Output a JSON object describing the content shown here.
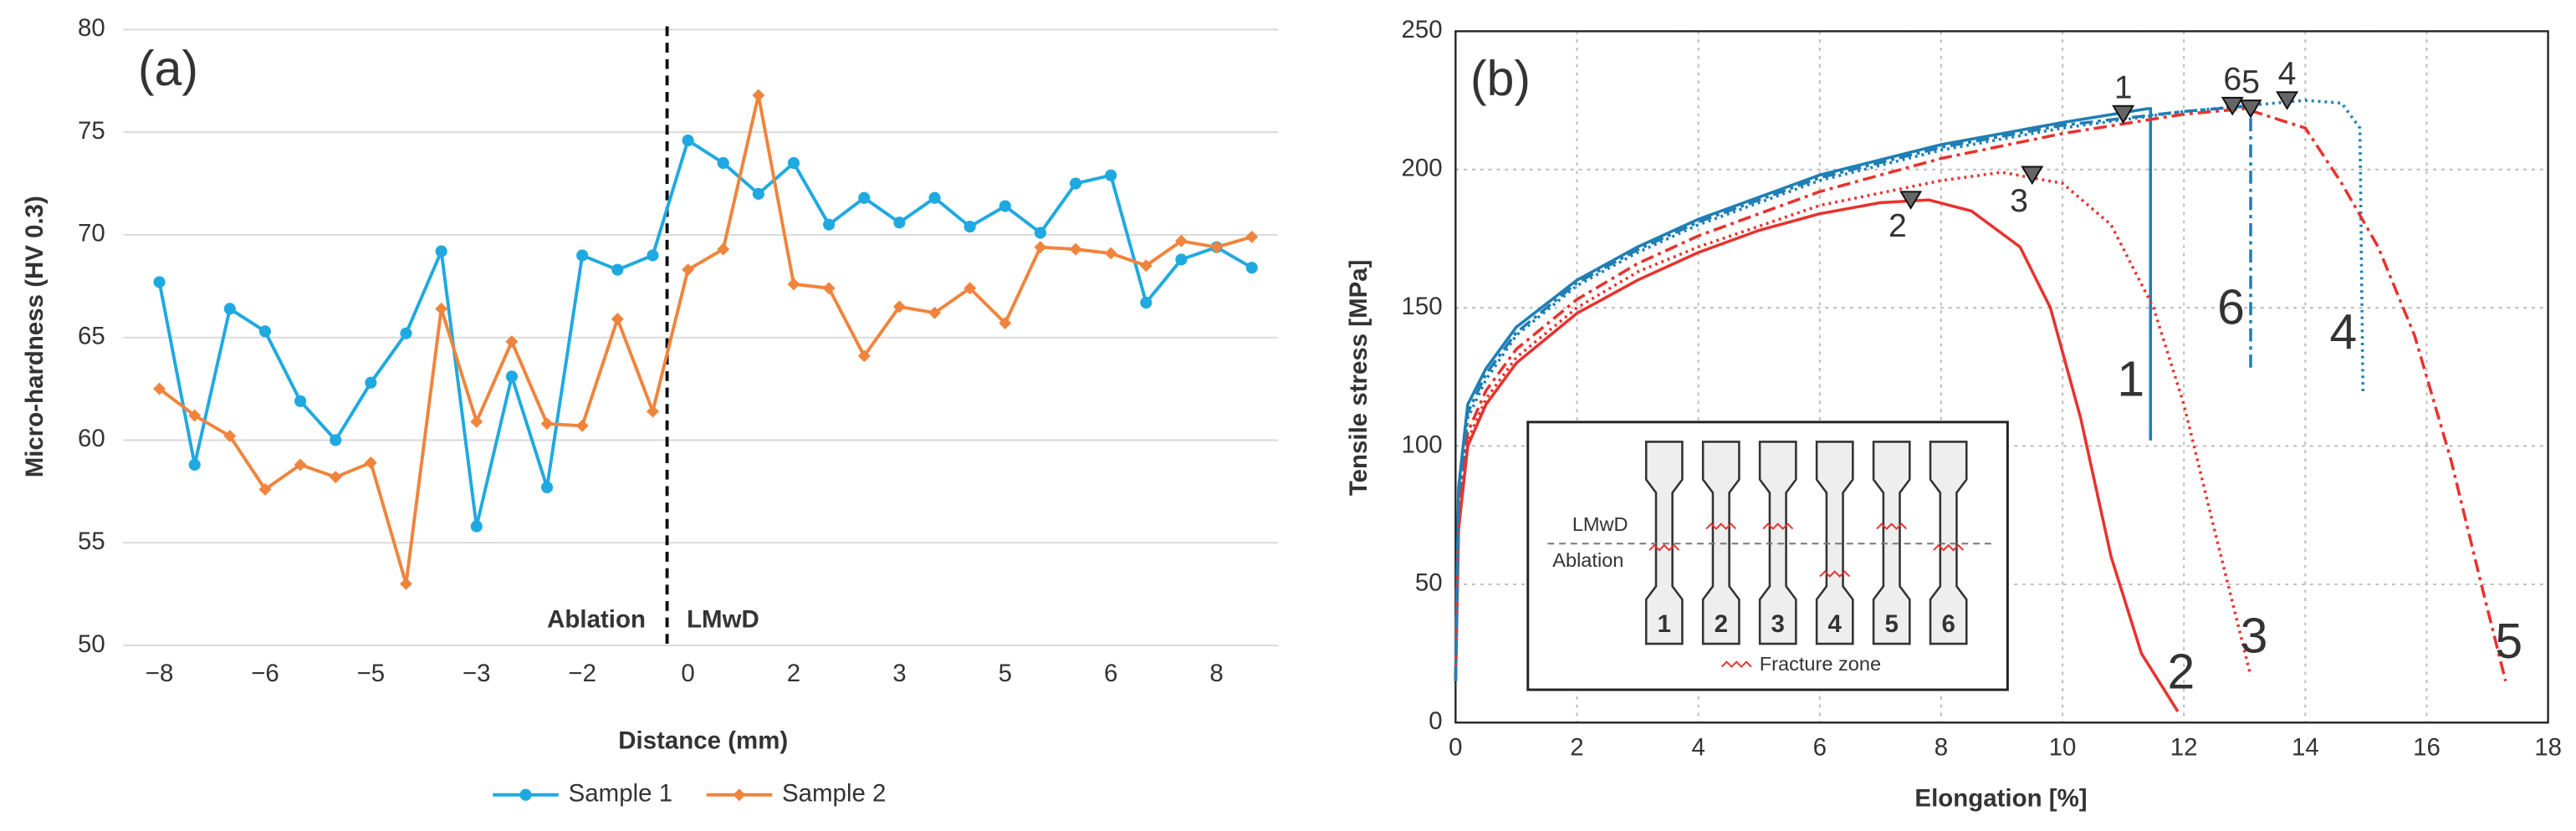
{
  "chart_data": [
    {
      "type": "line",
      "panel": "(a)",
      "ylabel": "Micro-hardness (HV 0.3)",
      "xlabel": "Distance (mm)",
      "annotations": [
        "Ablation",
        "LMwD"
      ],
      "categories": [
        "−8",
        null,
        null,
        "−6",
        null,
        null,
        "−5",
        null,
        null,
        "−3",
        null,
        null,
        "−2",
        null,
        null,
        "0",
        null,
        null,
        "2",
        null,
        null,
        "3",
        null,
        null,
        "5",
        null,
        null,
        "6",
        null,
        null,
        "8",
        null
      ],
      "series": [
        {
          "name": "Sample 1",
          "color": "#1fa9e1",
          "marker": "circle",
          "values": [
            67.7,
            58.8,
            66.4,
            65.3,
            61.9,
            60.0,
            62.8,
            65.2,
            69.2,
            55.8,
            63.1,
            57.7,
            69.0,
            68.3,
            69.0,
            74.6,
            73.5,
            72.0,
            73.5,
            70.5,
            71.8,
            70.6,
            71.8,
            70.4,
            71.4,
            70.1,
            72.5,
            72.9,
            66.7,
            68.8,
            69.4,
            68.4
          ]
        },
        {
          "name": "Sample 2",
          "color": "#f0843c",
          "marker": "diamond",
          "values": [
            62.5,
            61.2,
            60.2,
            57.6,
            58.8,
            58.2,
            58.9,
            53.0,
            66.4,
            60.9,
            64.8,
            60.8,
            60.7,
            65.9,
            61.4,
            68.3,
            69.3,
            76.8,
            67.6,
            67.4,
            64.1,
            66.5,
            66.2,
            67.4,
            65.7,
            69.4,
            69.3,
            69.1,
            68.5,
            69.7,
            69.4,
            69.9
          ]
        }
      ],
      "ylim": [
        50,
        80
      ],
      "yticks": [
        50,
        55,
        60,
        65,
        70,
        75,
        80
      ],
      "grid": true,
      "legend": "bottom"
    },
    {
      "type": "line",
      "panel": "(b)",
      "ylabel": "Tensile stress  [MPa]",
      "xlabel": "Elongation  [%]",
      "xlim": [
        0,
        18
      ],
      "xticks": [
        0,
        2,
        4,
        6,
        8,
        10,
        12,
        14,
        16,
        18
      ],
      "ylim": [
        0,
        250
      ],
      "yticks": [
        0,
        50,
        100,
        150,
        200,
        250
      ],
      "grid": true,
      "series": [
        {
          "name": "1",
          "color": "#1f7fb5",
          "dash": "solid",
          "x": [
            0,
            0.05,
            0.2,
            0.5,
            1,
            2,
            3,
            4,
            6,
            8,
            10,
            11.4,
            11.45,
            11.45
          ],
          "values": [
            15,
            85,
            115,
            128,
            143,
            160,
            172,
            182,
            198,
            209,
            217,
            222,
            222,
            102
          ],
          "fracture": [
            11.0,
            220
          ]
        },
        {
          "name": "2",
          "color": "#e8322e",
          "dash": "solid",
          "x": [
            0,
            0.05,
            0.2,
            0.5,
            1,
            2,
            3,
            4,
            5,
            6,
            7,
            7.8,
            8.5,
            9.3,
            9.8,
            10.3,
            10.8,
            11.3,
            11.9
          ],
          "values": [
            15,
            70,
            100,
            115,
            130,
            148,
            160,
            170,
            178,
            184,
            188,
            189,
            185,
            172,
            150,
            110,
            60,
            25,
            4
          ],
          "fracture": [
            7.5,
            189
          ]
        },
        {
          "name": "3",
          "color": "#e8322e",
          "dash": "dotted",
          "x": [
            0,
            0.05,
            0.2,
            0.5,
            1,
            2,
            3,
            4,
            6,
            8,
            9,
            10,
            10.8,
            11.5,
            12,
            12.5,
            13.1
          ],
          "values": [
            15,
            72,
            102,
            117,
            132,
            150,
            163,
            172,
            187,
            196,
            199,
            195,
            180,
            150,
            115,
            70,
            17
          ],
          "fracture": [
            9.5,
            198
          ]
        },
        {
          "name": "4",
          "color": "#1f7fb5",
          "dash": "dotted",
          "x": [
            0,
            0.05,
            0.2,
            0.5,
            1,
            2,
            3,
            4,
            6,
            8,
            10,
            12,
            14,
            14.6,
            14.9,
            14.95
          ],
          "values": [
            15,
            80,
            110,
            124,
            140,
            158,
            170,
            180,
            196,
            207,
            215,
            221,
            225,
            224,
            215,
            119
          ],
          "fracture": [
            13.7,
            225
          ]
        },
        {
          "name": "5",
          "color": "#e8322e",
          "dash": "dashdot",
          "x": [
            0,
            0.05,
            0.2,
            0.5,
            1,
            2,
            3,
            4,
            6,
            8,
            10,
            12,
            13,
            14,
            14.6,
            15.2,
            15.8,
            16.4,
            16.9,
            17.3
          ],
          "values": [
            15,
            75,
            105,
            120,
            135,
            153,
            166,
            176,
            192,
            204,
            213,
            220,
            222,
            215,
            195,
            172,
            140,
            95,
            50,
            15
          ],
          "fracture": [
            13.1,
            222
          ]
        },
        {
          "name": "6",
          "color": "#1f7fb5",
          "dash": "dashdot",
          "x": [
            0,
            0.05,
            0.2,
            0.5,
            1,
            2,
            3,
            4,
            6,
            8,
            10,
            12,
            13.1,
            13.1
          ],
          "values": [
            15,
            82,
            112,
            126,
            141,
            159,
            171,
            181,
            197,
            208,
            216,
            221,
            223,
            128
          ],
          "fracture": [
            12.8,
            223
          ]
        }
      ],
      "inset": {
        "upper": "LMwD",
        "lower": "Ablation",
        "legend": "Fracture zone",
        "specimens": [
          "1",
          "2",
          "3",
          "4",
          "5",
          "6"
        ],
        "fracture_side": [
          "lower",
          "upper",
          "upper",
          "lower",
          "upper",
          "lower"
        ]
      }
    }
  ]
}
